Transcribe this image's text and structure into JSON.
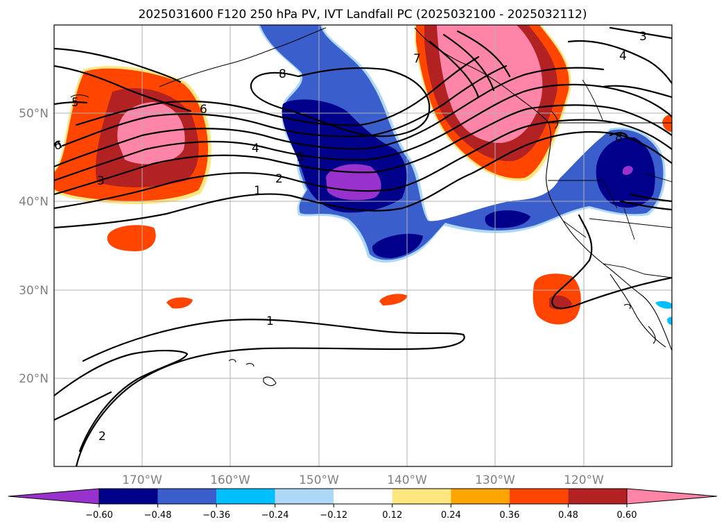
{
  "title": "2025031600 F120 250 hPa PV, IVT Landfall PC (2025032100 - 2025032112)",
  "axes": {
    "x_ticks": [
      "170°W",
      "160°W",
      "150°W",
      "140°W",
      "130°W",
      "120°W"
    ],
    "y_ticks": [
      "50°N",
      "40°N",
      "30°N",
      "20°N"
    ]
  },
  "colorbar": {
    "extend": "both",
    "levels": [
      "−0.60",
      "−0.48",
      "−0.36",
      "−0.24",
      "−0.12",
      "0.12",
      "0.24",
      "0.36",
      "0.48",
      "0.60"
    ],
    "colors": [
      "#9932CC",
      "#00008B",
      "#3A5FCD",
      "#00BFFF",
      "#ADD8F7",
      "#FFFFFF",
      "#FFE680",
      "#FFA500",
      "#FF4500",
      "#B22222",
      "#FF85A8"
    ]
  },
  "contour_labels": [
    {
      "text": "1",
      "ref": "c1"
    },
    {
      "text": "2",
      "ref": "c2"
    },
    {
      "text": "3",
      "ref": "c3"
    },
    {
      "text": "4",
      "ref": "c4"
    },
    {
      "text": "5",
      "ref": "c5"
    },
    {
      "text": "6",
      "ref": "c6"
    },
    {
      "text": "7",
      "ref": "c7"
    },
    {
      "text": "8",
      "ref": "c8"
    },
    {
      "text": "1",
      "ref": "c1b"
    },
    {
      "text": "2",
      "ref": "c2b"
    },
    {
      "text": "5",
      "ref": "c5b"
    },
    {
      "text": "6",
      "ref": "c6b"
    },
    {
      "text": "4",
      "ref": "c4b"
    },
    {
      "text": "3",
      "ref": "c3b"
    },
    {
      "text": "8",
      "ref": "c8b"
    }
  ]
}
